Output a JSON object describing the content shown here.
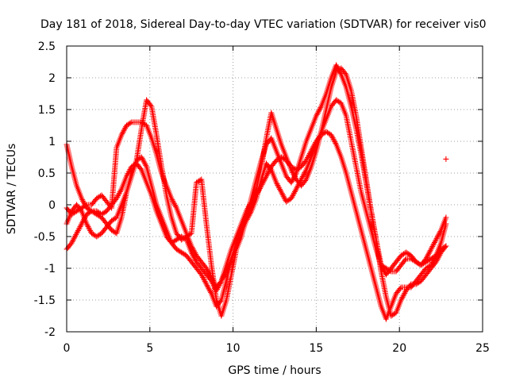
{
  "chart_data": {
    "type": "scatter",
    "title": "Day 181 of 2018, Sidereal Day-to-day VTEC variation (SDTVAR) for receiver vis0",
    "xlabel": "GPS time / hours",
    "ylabel": "SDTVAR / TECUs",
    "xlim": [
      0,
      25
    ],
    "ylim": [
      -2,
      2.5
    ],
    "xticks": [
      0,
      5,
      10,
      15,
      20,
      25
    ],
    "yticks": [
      -2,
      -1.5,
      -1,
      -0.5,
      0,
      0.5,
      1,
      1.5,
      2,
      2.5
    ],
    "xtick_labels": [
      "0",
      "5",
      "10",
      "15",
      "20",
      "25"
    ],
    "ytick_labels": [
      "-2",
      "-1.5",
      "-1",
      "-0.5",
      "0",
      "0.5",
      "1",
      "1.5",
      "2",
      "2.5"
    ],
    "grid": true,
    "marker": "plus",
    "color": "#ff0000",
    "series": [
      {
        "x": [
          0.0,
          0.3,
          0.6,
          0.9,
          1.2,
          1.5,
          1.8,
          2.1,
          2.4,
          2.7,
          3.0,
          3.3,
          3.6,
          3.9,
          4.2,
          4.5,
          4.8,
          5.1,
          5.4,
          5.7,
          6.0,
          6.3,
          6.6,
          6.9,
          7.2,
          7.5,
          7.8,
          8.1,
          8.4,
          8.7,
          9.0,
          9.3,
          9.6,
          9.9,
          10.2,
          10.5,
          10.8,
          11.1,
          11.4,
          11.7,
          12.0,
          12.3,
          12.6,
          12.9,
          13.2,
          13.5,
          13.8,
          14.1,
          14.4,
          14.7,
          15.0,
          15.3,
          15.6,
          15.9,
          16.2,
          16.5,
          16.8,
          17.1,
          17.4,
          17.7,
          18.0,
          18.3,
          18.6,
          18.9,
          19.2,
          19.5,
          19.8,
          20.1,
          20.4,
          20.7,
          21.0,
          21.3,
          21.6,
          21.9,
          22.2,
          22.5,
          22.8
        ],
        "y": [
          0.95,
          0.6,
          0.3,
          0.1,
          -0.05,
          -0.1,
          -0.15,
          -0.2,
          -0.3,
          -0.4,
          -0.45,
          -0.2,
          0.2,
          0.5,
          0.7,
          0.75,
          0.6,
          0.3,
          0.0,
          -0.2,
          -0.4,
          -0.6,
          -0.7,
          -0.75,
          -0.8,
          -0.9,
          -1.0,
          -1.1,
          -1.25,
          -1.4,
          -1.6,
          -1.5,
          -1.2,
          -0.85,
          -0.6,
          -0.4,
          -0.2,
          0.0,
          0.15,
          0.3,
          0.45,
          0.6,
          0.7,
          0.75,
          0.7,
          0.6,
          0.55,
          0.6,
          0.7,
          0.85,
          1.0,
          1.1,
          1.15,
          1.1,
          0.95,
          0.75,
          0.5,
          0.2,
          -0.1,
          -0.4,
          -0.7,
          -1.0,
          -1.3,
          -1.6,
          -1.8,
          -1.6,
          -1.4,
          -1.3,
          -1.3,
          -1.3,
          -1.2,
          -1.1,
          -1.0,
          -0.95,
          -0.8,
          -0.6,
          -0.3
        ]
      },
      {
        "x": [
          0.0,
          0.3,
          0.6,
          0.9,
          1.2,
          1.5,
          1.8,
          2.1,
          2.4,
          2.7,
          3.0,
          3.3,
          3.6,
          3.9,
          4.2,
          4.5,
          4.8,
          5.1,
          5.4,
          5.7,
          6.0,
          6.3,
          6.6,
          6.9,
          7.2,
          7.5,
          7.8,
          8.1,
          8.4,
          8.7,
          9.0,
          9.3,
          9.6,
          9.9,
          10.2,
          10.5,
          10.8,
          11.1,
          11.4,
          11.7,
          12.0,
          12.3,
          12.6,
          12.9,
          13.2,
          13.5,
          13.8,
          14.1,
          14.4,
          14.7,
          15.0,
          15.3,
          15.6,
          15.9,
          16.2,
          16.5,
          16.8,
          17.1,
          17.4,
          17.7,
          18.0,
          18.3,
          18.6,
          18.9,
          19.2,
          19.5,
          19.8,
          20.1,
          20.4,
          20.7,
          21.0,
          21.3,
          21.6,
          21.9,
          22.2,
          22.5,
          22.8
        ],
        "y": [
          -0.05,
          -0.15,
          -0.1,
          -0.05,
          0.0,
          0.0,
          0.1,
          0.15,
          0.05,
          -0.05,
          0.9,
          1.1,
          1.25,
          1.3,
          1.3,
          1.3,
          1.25,
          1.05,
          0.8,
          0.5,
          0.3,
          0.1,
          -0.05,
          -0.25,
          -0.45,
          -0.65,
          -0.8,
          -0.9,
          -1.0,
          -1.15,
          -1.3,
          -1.2,
          -1.05,
          -0.85,
          -0.65,
          -0.45,
          -0.25,
          -0.1,
          0.1,
          0.4,
          0.65,
          0.55,
          0.35,
          0.2,
          0.05,
          0.1,
          0.25,
          0.4,
          0.55,
          0.75,
          0.95,
          1.15,
          1.35,
          1.55,
          1.65,
          1.6,
          1.4,
          1.0,
          0.6,
          0.2,
          -0.1,
          -0.4,
          -0.7,
          -0.95,
          -1.0,
          -1.05,
          -1.05,
          -0.95,
          -0.85,
          -0.85,
          -0.9,
          -0.95,
          -0.9,
          -0.85,
          -0.8,
          -0.7,
          -0.65
        ]
      },
      {
        "x": [
          0.0,
          0.3,
          0.6,
          0.9,
          1.2,
          1.5,
          1.8,
          2.1,
          2.4,
          2.7,
          3.0,
          3.3,
          3.6,
          3.9,
          4.2,
          4.5,
          4.8,
          5.1,
          5.4,
          5.7,
          6.0,
          6.3,
          6.6,
          6.9,
          7.2,
          7.5,
          7.8,
          8.1,
          8.4,
          8.7,
          9.0,
          9.3,
          9.6,
          9.9,
          10.2,
          10.5,
          10.8,
          11.1,
          11.4,
          11.7,
          12.0,
          12.3,
          12.6,
          12.9,
          13.2,
          13.5,
          13.8,
          14.1,
          14.4,
          14.7,
          15.0,
          15.3,
          15.6,
          15.9,
          16.2,
          16.5,
          16.8,
          17.1,
          17.4,
          17.7,
          18.0,
          18.3,
          18.6,
          18.9,
          19.2,
          19.5,
          19.8,
          20.1,
          20.4,
          20.7,
          21.0,
          21.3,
          21.6,
          21.9,
          22.2,
          22.5,
          22.8
        ],
        "y": [
          -0.7,
          -0.6,
          -0.45,
          -0.3,
          -0.15,
          -0.1,
          -0.1,
          -0.15,
          -0.1,
          0.0,
          0.1,
          0.25,
          0.45,
          0.6,
          0.65,
          0.55,
          0.35,
          0.15,
          -0.1,
          -0.3,
          -0.5,
          -0.6,
          -0.55,
          -0.5,
          -0.55,
          -0.75,
          -0.9,
          -1.0,
          -1.1,
          -1.2,
          -1.35,
          -1.2,
          -0.95,
          -0.7,
          -0.5,
          -0.3,
          -0.1,
          0.05,
          0.25,
          0.6,
          1.05,
          1.45,
          1.2,
          0.95,
          0.75,
          0.55,
          0.4,
          0.3,
          0.4,
          0.6,
          0.85,
          1.15,
          1.5,
          1.85,
          2.1,
          2.15,
          2.05,
          1.8,
          1.4,
          0.9,
          0.4,
          -0.1,
          -0.55,
          -0.95,
          -1.1,
          -1.0,
          -0.9,
          -0.8,
          -0.75,
          -0.8,
          -0.9,
          -0.95,
          -0.85,
          -0.7,
          -0.55,
          -0.4,
          -0.2
        ]
      },
      {
        "x": [
          0.0,
          0.3,
          0.6,
          0.9,
          1.2,
          1.5,
          1.8,
          2.1,
          2.4,
          2.7,
          3.0,
          3.3,
          3.6,
          3.9,
          4.2,
          4.5,
          4.8,
          5.1,
          5.4,
          5.7,
          6.0,
          6.3,
          6.6,
          6.9,
          7.2,
          7.5,
          7.8,
          8.1,
          8.4,
          8.7,
          9.0,
          9.3,
          9.6,
          9.9,
          10.2,
          10.5,
          10.8,
          11.1,
          11.4,
          11.7,
          12.0,
          12.3,
          12.6,
          12.9,
          13.2,
          13.5,
          13.8,
          14.1,
          14.4,
          14.7,
          15.0,
          15.3,
          15.6,
          15.9,
          16.2,
          16.5,
          16.8,
          17.1,
          17.4,
          17.7,
          18.0,
          18.3,
          18.6,
          18.9,
          19.2,
          19.5,
          19.8,
          20.1,
          20.4,
          20.7,
          21.0,
          21.3,
          21.6,
          21.9,
          22.2,
          22.5,
          22.8
        ],
        "y": [
          -0.3,
          -0.1,
          0.0,
          -0.1,
          -0.3,
          -0.45,
          -0.5,
          -0.45,
          -0.35,
          -0.25,
          -0.2,
          0.0,
          0.2,
          0.45,
          0.7,
          1.2,
          1.65,
          1.55,
          1.1,
          0.6,
          0.15,
          -0.2,
          -0.45,
          -0.55,
          -0.5,
          -0.45,
          0.35,
          0.4,
          -0.3,
          -0.95,
          -1.5,
          -1.75,
          -1.5,
          -1.1,
          -0.7,
          -0.5,
          -0.2,
          0.1,
          0.4,
          0.7,
          0.95,
          1.05,
          0.85,
          0.65,
          0.45,
          0.35,
          0.5,
          0.75,
          1.0,
          1.2,
          1.4,
          1.55,
          1.75,
          2.0,
          2.2,
          2.05,
          1.85,
          1.55,
          1.2,
          0.8,
          0.35,
          -0.1,
          -0.55,
          -1.05,
          -1.45,
          -1.75,
          -1.7,
          -1.5,
          -1.35,
          -1.25,
          -1.25,
          -1.2,
          -1.1,
          -1.0,
          -0.9,
          -0.75,
          -0.65
        ]
      },
      {
        "x": [
          22.8
        ],
        "y": [
          0.72
        ]
      }
    ]
  }
}
